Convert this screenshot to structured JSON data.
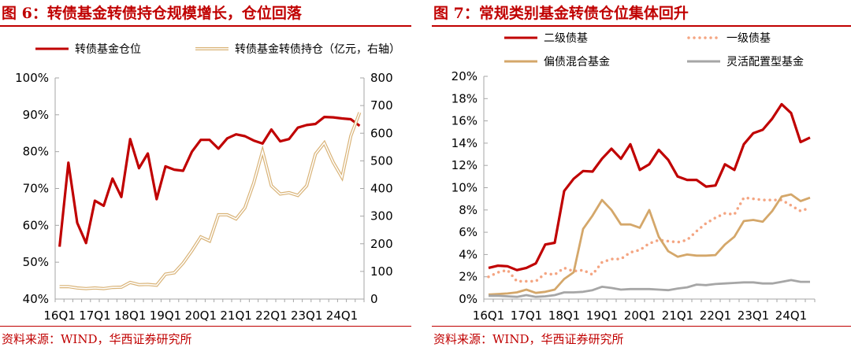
{
  "charts_meta": {
    "left_title": "图 6：转债基金转债持仓规模增长，仓位回落",
    "right_title": "图 7：常规类别基金转债仓位集体回升",
    "left_source": "资料来源：WIND，华西证券研究所",
    "right_source": "资料来源：WIND，华西证券研究所"
  },
  "chart_data": [
    {
      "type": "line",
      "title": "图 6：转债基金转债持仓规模增长，仓位回落",
      "x_ticks": [
        "16Q1",
        "17Q1",
        "18Q1",
        "19Q1",
        "20Q1",
        "21Q1",
        "22Q1",
        "23Q1",
        "24Q1"
      ],
      "y_ticks": [
        "40%",
        "50%",
        "60%",
        "70%",
        "80%",
        "90%",
        "100%"
      ],
      "ylim": [
        40,
        100
      ],
      "y2_ticks": [
        "0",
        "100",
        "200",
        "300",
        "400",
        "500",
        "600",
        "700",
        "800"
      ],
      "y2lim": [
        0,
        800
      ],
      "legend_position": "top",
      "series": [
        {
          "name": "转债基金仓位",
          "axis": "left",
          "color": "#c00000",
          "style": "solid",
          "values": [
            54.2,
            77,
            60.7,
            55.2,
            66.7,
            65.3,
            72.7,
            67.7,
            83.4,
            75.5,
            79.5,
            67.1,
            76,
            75.1,
            74.8,
            80,
            83.2,
            83.2,
            80.8,
            83.6,
            84.7,
            84.2,
            83,
            82.2,
            86,
            82.8,
            83.4,
            86.5,
            87.2,
            87.5,
            89.4,
            89.3,
            89,
            88.8,
            87
          ]
        },
        {
          "name": "转债基金转债持仓（亿元，右轴）",
          "axis": "right",
          "color": "#d9b377",
          "style": "double",
          "values": [
            45,
            45,
            40,
            38,
            40,
            38,
            42,
            43,
            60,
            52,
            53,
            50,
            90,
            95,
            130,
            175,
            225,
            210,
            305,
            305,
            290,
            330,
            420,
            535,
            410,
            380,
            385,
            375,
            410,
            525,
            565,
            495,
            440,
            590,
            675
          ]
        }
      ]
    },
    {
      "type": "line",
      "title": "图 7：常规类别基金转债仓位集体回升",
      "x_ticks": [
        "16Q1",
        "17Q1",
        "18Q1",
        "19Q1",
        "20Q1",
        "21Q1",
        "22Q1",
        "23Q1",
        "24Q1"
      ],
      "y_ticks": [
        "0%",
        "2%",
        "4%",
        "6%",
        "8%",
        "10%",
        "12%",
        "14%",
        "16%",
        "18%",
        "20%"
      ],
      "ylim": [
        0,
        20
      ],
      "legend_position": "top",
      "series": [
        {
          "name": "二级债基",
          "color": "#c00000",
          "style": "solid",
          "values": [
            2.8,
            3.0,
            2.95,
            2.6,
            2.8,
            3.2,
            4.9,
            5.05,
            9.7,
            10.8,
            11.5,
            11.45,
            12.6,
            13.5,
            12.6,
            13.9,
            11.6,
            12.1,
            13.4,
            12.5,
            11.0,
            10.7,
            10.7,
            10.1,
            10.2,
            12.1,
            11.6,
            13.9,
            14.9,
            15.2,
            16.2,
            17.5,
            16.7,
            14.1,
            14.5
          ]
        },
        {
          "name": "一级债基",
          "color": "#f4a582",
          "style": "dotted",
          "values": [
            2.0,
            2.4,
            2.6,
            1.6,
            1.6,
            1.6,
            2.3,
            2.2,
            2.8,
            2.5,
            2.6,
            2.2,
            3.3,
            3.6,
            3.6,
            4.2,
            4.4,
            5.0,
            5.3,
            5.2,
            5.1,
            5.3,
            6.1,
            6.8,
            7.3,
            7.7,
            7.6,
            9.1,
            9.0,
            8.9,
            8.9,
            8.9,
            8.4,
            7.9,
            8.2
          ]
        },
        {
          "name": "偏债混合基金",
          "color": "#d4a76a",
          "style": "solid",
          "values": [
            0.4,
            0.45,
            0.5,
            0.6,
            0.85,
            0.55,
            0.65,
            0.85,
            1.8,
            2.4,
            6.3,
            7.5,
            8.9,
            8.0,
            6.7,
            6.7,
            6.4,
            8.0,
            5.6,
            4.3,
            3.8,
            4.0,
            3.9,
            3.9,
            3.95,
            4.9,
            5.6,
            7.0,
            7.1,
            6.95,
            7.9,
            9.2,
            9.4,
            8.8,
            9.1
          ]
        },
        {
          "name": "灵活配置型基金",
          "color": "#a6a6a6",
          "style": "solid",
          "values": [
            0.3,
            0.3,
            0.25,
            0.2,
            0.35,
            0.2,
            0.25,
            0.35,
            0.6,
            0.6,
            0.65,
            0.8,
            1.1,
            1.0,
            0.85,
            0.9,
            0.9,
            0.9,
            0.85,
            0.8,
            0.95,
            1.05,
            1.3,
            1.25,
            1.35,
            1.4,
            1.45,
            1.5,
            1.5,
            1.4,
            1.4,
            1.55,
            1.7,
            1.55,
            1.55
          ]
        }
      ]
    }
  ]
}
